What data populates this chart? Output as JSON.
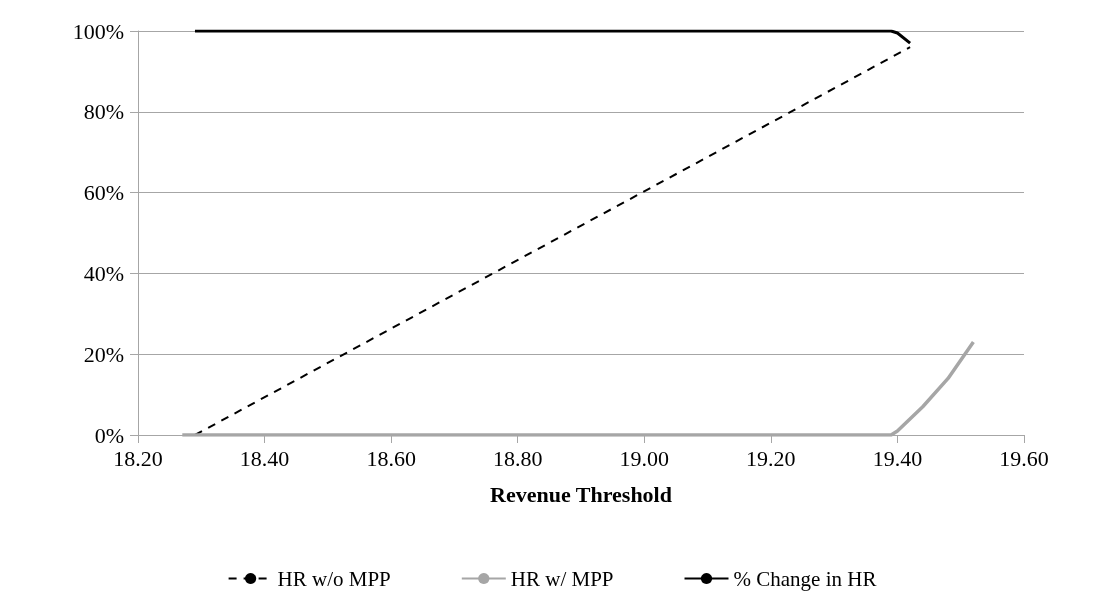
{
  "chart_data": {
    "type": "line",
    "xlabel": "Revenue Threshold",
    "xlim": [
      18.2,
      19.6
    ],
    "xticks": [
      {
        "value": 18.2,
        "label": "18.20"
      },
      {
        "value": 18.4,
        "label": "18.40"
      },
      {
        "value": 18.6,
        "label": "18.60"
      },
      {
        "value": 18.8,
        "label": "18.80"
      },
      {
        "value": 19.0,
        "label": "19.00"
      },
      {
        "value": 19.2,
        "label": "19.20"
      },
      {
        "value": 19.4,
        "label": "19.40"
      },
      {
        "value": 19.6,
        "label": "19.60"
      }
    ],
    "ylim": [
      0,
      100
    ],
    "yticks": [
      {
        "value": 0,
        "label": "0%"
      },
      {
        "value": 20,
        "label": "20%"
      },
      {
        "value": 40,
        "label": "40%"
      },
      {
        "value": 60,
        "label": "60%"
      },
      {
        "value": 80,
        "label": "80%"
      },
      {
        "value": 100,
        "label": "100%"
      }
    ],
    "grid": "y",
    "legend": "bottom",
    "marker": "none",
    "series": [
      {
        "name": "HR w/o MPP",
        "color": "#000000",
        "line_style": "dashed",
        "x": [
          18.29,
          19.42
        ],
        "values": [
          0,
          96
        ]
      },
      {
        "name": "HR w/ MPP",
        "color": "#a6a6a6",
        "line_style": "solid",
        "x": [
          18.27,
          19.39,
          19.4,
          19.44,
          19.48,
          19.52
        ],
        "values": [
          0,
          0,
          1,
          7,
          14,
          23
        ]
      },
      {
        "name": "% Change in HR",
        "color": "#000000",
        "line_style": "solid",
        "x": [
          18.29,
          19.39,
          19.4,
          19.42
        ],
        "values": [
          100,
          100,
          99.5,
          97
        ]
      }
    ]
  }
}
